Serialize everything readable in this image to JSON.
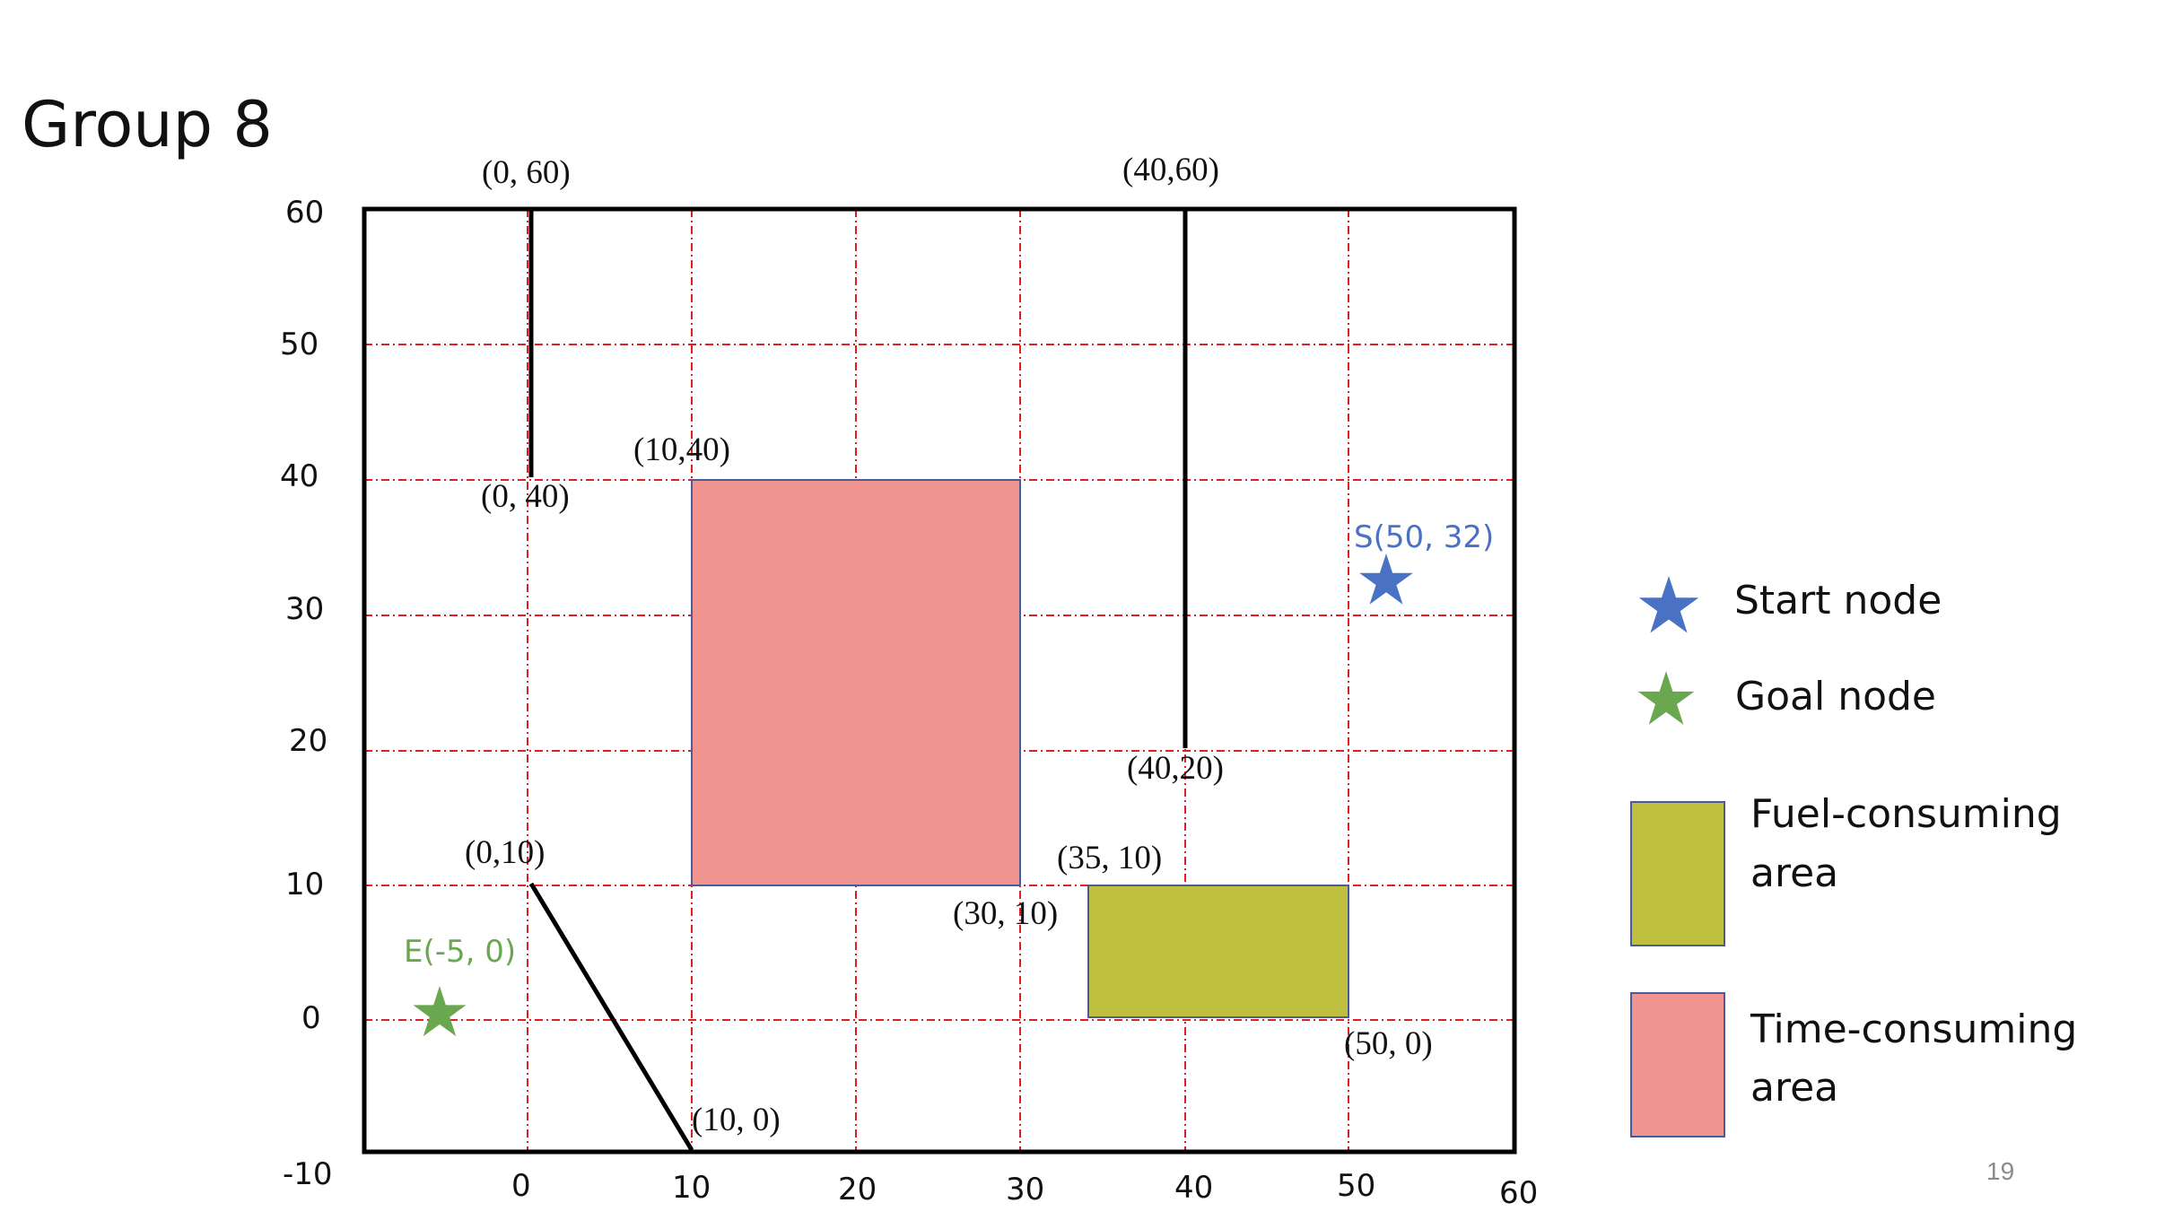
{
  "title": "Group 8",
  "page_number": "19",
  "colors": {
    "grid": "#e02020",
    "frame": "#000000",
    "wall": "#000000",
    "time_area": "#f0948f",
    "fuel_area": "#bfbf3f",
    "area_border": "#4a5a9a",
    "start_star": "#4a72c4",
    "goal_star": "#6aa84f"
  },
  "axes": {
    "x_ticks": [
      "0",
      "10",
      "20",
      "30",
      "40",
      "50",
      "60"
    ],
    "y_ticks": [
      "60",
      "50",
      "40",
      "30",
      "20",
      "10",
      "0",
      "-10"
    ]
  },
  "labels": {
    "p0_60": "(0, 60)",
    "p40_60": "(40,60)",
    "p10_40": "(10,40)",
    "p0_40": "(0, 40)",
    "p40_20": "(40,20)",
    "p0_10": "(0,10)",
    "p35_10": "(35, 10)",
    "p30_10": "(30, 10)",
    "p50_0": "(50, 0)",
    "p10_0": "(10, 0)"
  },
  "start_node": {
    "label": "S(50, 32)",
    "icon": "star-icon"
  },
  "goal_node": {
    "label": "E(-5, 0)",
    "icon": "star-icon"
  },
  "legend": {
    "start": "Start node",
    "goal": "Goal node",
    "fuel_line1": "Fuel-consuming",
    "fuel_line2": "area",
    "time_line1": "Time-consuming",
    "time_line2": "area"
  }
}
